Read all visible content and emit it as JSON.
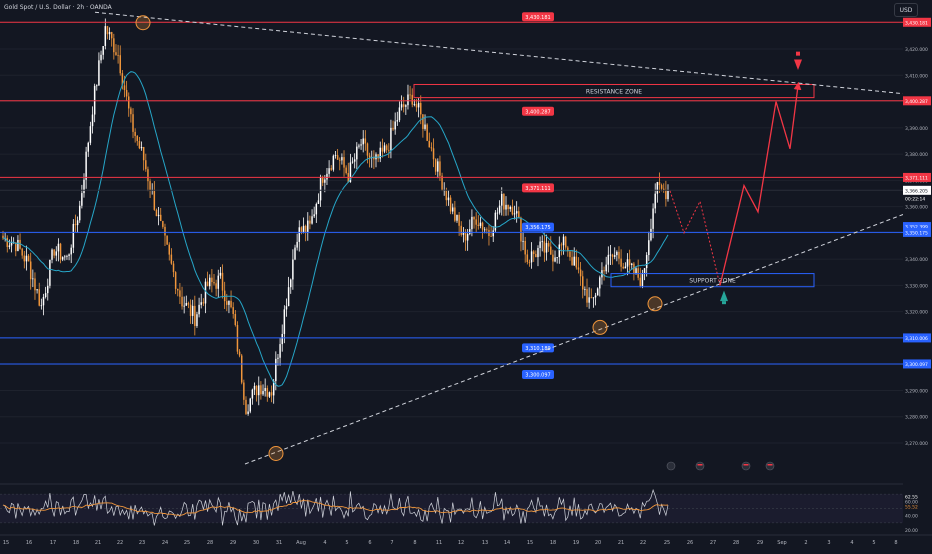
{
  "header": {
    "symbol_label": "Gold Spot / U.S. Dollar · 2h · OANDA",
    "currency_button": "USD"
  },
  "colors": {
    "background": "#131722",
    "bull": "#ffffff",
    "bear": "#f0963c",
    "resistance": "#f23645",
    "support": "#2962ff",
    "ma": "#26a6c8",
    "rsi": "#d1d4dc",
    "rsi_ma": "#f0963c"
  },
  "chart_data": {
    "type": "candlestick",
    "ylim": [
      3262,
      3436
    ],
    "y_ticks": [
      3270,
      3280,
      3290,
      3300,
      3310,
      3320,
      3330,
      3340,
      3350,
      3360,
      3370,
      3380,
      3390,
      3400,
      3410,
      3420
    ],
    "x_ticks": [
      "15",
      "16",
      "17",
      "18",
      "21",
      "22",
      "23",
      "24",
      "25",
      "28",
      "29",
      "30",
      "31",
      "Aug",
      "4",
      "5",
      "6",
      "7",
      "8",
      "11",
      "12",
      "13",
      "14",
      "15",
      "18",
      "19",
      "20",
      "21",
      "22",
      "25",
      "26",
      "27",
      "28",
      "29",
      "Sep",
      "2",
      "3",
      "4",
      "5",
      "8"
    ],
    "candle_anchors": [
      [
        0,
        3348
      ],
      [
        6,
        3346
      ],
      [
        12,
        3338
      ],
      [
        18,
        3322
      ],
      [
        24,
        3344
      ],
      [
        30,
        3340
      ],
      [
        36,
        3360
      ],
      [
        42,
        3398
      ],
      [
        48,
        3428
      ],
      [
        54,
        3418
      ],
      [
        60,
        3392
      ],
      [
        66,
        3378
      ],
      [
        72,
        3358
      ],
      [
        78,
        3340
      ],
      [
        84,
        3324
      ],
      [
        90,
        3318
      ],
      [
        96,
        3330
      ],
      [
        102,
        3332
      ],
      [
        108,
        3318
      ],
      [
        114,
        3284
      ],
      [
        120,
        3292
      ],
      [
        126,
        3290
      ],
      [
        132,
        3320
      ],
      [
        138,
        3350
      ],
      [
        144,
        3352
      ],
      [
        150,
        3372
      ],
      [
        156,
        3380
      ],
      [
        162,
        3372
      ],
      [
        168,
        3384
      ],
      [
        174,
        3376
      ],
      [
        180,
        3382
      ],
      [
        186,
        3396
      ],
      [
        192,
        3402
      ],
      [
        198,
        3390
      ],
      [
        204,
        3374
      ],
      [
        210,
        3360
      ],
      [
        216,
        3348
      ],
      [
        222,
        3356
      ],
      [
        228,
        3350
      ],
      [
        234,
        3362
      ],
      [
        240,
        3360
      ],
      [
        246,
        3340
      ],
      [
        252,
        3344
      ],
      [
        258,
        3342
      ],
      [
        264,
        3346
      ],
      [
        270,
        3334
      ],
      [
        276,
        3322
      ],
      [
        282,
        3338
      ],
      [
        288,
        3342
      ],
      [
        294,
        3336
      ],
      [
        300,
        3332
      ],
      [
        306,
        3366
      ],
      [
        312,
        3366
      ]
    ],
    "price_labels": [
      {
        "value": 3430.181,
        "text": "3,430.181",
        "kind": "resistance"
      },
      {
        "value": 3400.287,
        "text": "3,400.287",
        "kind": "resistance"
      },
      {
        "value": 3371.111,
        "text": "3,371.111",
        "kind": "resistance"
      },
      {
        "value": 3366.205,
        "text": "3,366.205",
        "kind": "current"
      },
      {
        "value": 3352.399,
        "text": "3,352.399",
        "kind": "support"
      },
      {
        "value": 3350.175,
        "text": "3,350.175",
        "kind": "support"
      },
      {
        "value": 3310.006,
        "text": "3,310.006",
        "kind": "support"
      },
      {
        "value": 3300.097,
        "text": "3,300.097",
        "kind": "support"
      }
    ],
    "countdown_label": "00:22:14",
    "chart_labels": [
      {
        "value": 3430.181,
        "text": "3,430.181",
        "kind": "resistance"
      },
      {
        "value": 3400.287,
        "text": "3,400.287",
        "kind": "resistance"
      },
      {
        "value": 3371.111,
        "text": "3,371.111",
        "kind": "resistance"
      },
      {
        "value": 3356.175,
        "text": "3,356.175",
        "kind": "support"
      },
      {
        "value": 3310.189,
        "text": "3,310.189",
        "kind": "support"
      },
      {
        "value": 3300.097,
        "text": "3,300.097",
        "kind": "support"
      }
    ],
    "zones": [
      {
        "name": "RESISTANCE ZONE",
        "top": 3406.5,
        "bottom": 3401.5,
        "kind": "resistance"
      },
      {
        "name": "SUPPORT ZONE",
        "top": 3334.5,
        "bottom": 3329.5,
        "kind": "support"
      }
    ],
    "rsi": {
      "ylim": [
        20,
        80
      ],
      "ticks": [
        20,
        40,
        60
      ],
      "value_labels": [
        "62.55",
        "55.52"
      ]
    }
  }
}
